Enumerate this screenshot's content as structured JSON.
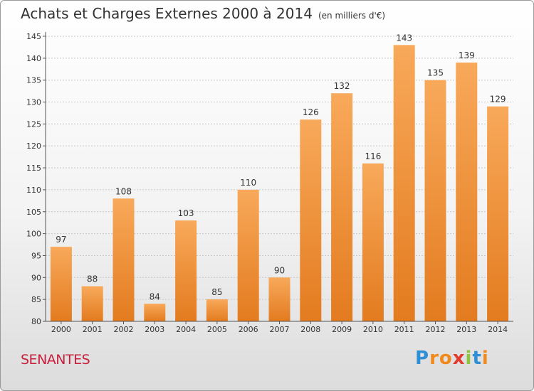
{
  "header": {
    "title": "Achats et Charges Externes 2000 à 2014",
    "subtitle": "(en milliers d'€)"
  },
  "footer": {
    "commune": "SENANTES",
    "logo": {
      "letters": [
        "P",
        "r",
        "o",
        "x",
        "i",
        "t",
        "i"
      ],
      "colors": [
        "#2e8fd6",
        "#f08a1c",
        "#f08a1c",
        "#e23b2e",
        "#8cc63f",
        "#2e8fd6",
        "#f08a1c"
      ]
    }
  },
  "colors": {
    "bar_light": "#f8a95a",
    "bar_dark": "#e37b1f",
    "grid": "#c8c8c8",
    "axis": "#555555"
  },
  "chart_data": {
    "type": "bar",
    "categories": [
      "2000",
      "2001",
      "2002",
      "2003",
      "2004",
      "2005",
      "2006",
      "2007",
      "2008",
      "2009",
      "2010",
      "2011",
      "2012",
      "2013",
      "2014"
    ],
    "values": [
      97,
      88,
      108,
      84,
      103,
      85,
      110,
      90,
      126,
      132,
      116,
      143,
      135,
      139,
      129
    ],
    "ylim": [
      80,
      145
    ],
    "yticks": [
      80,
      85,
      90,
      95,
      100,
      105,
      110,
      115,
      120,
      125,
      130,
      135,
      140,
      145
    ],
    "grid": true,
    "data_labels": true
  }
}
